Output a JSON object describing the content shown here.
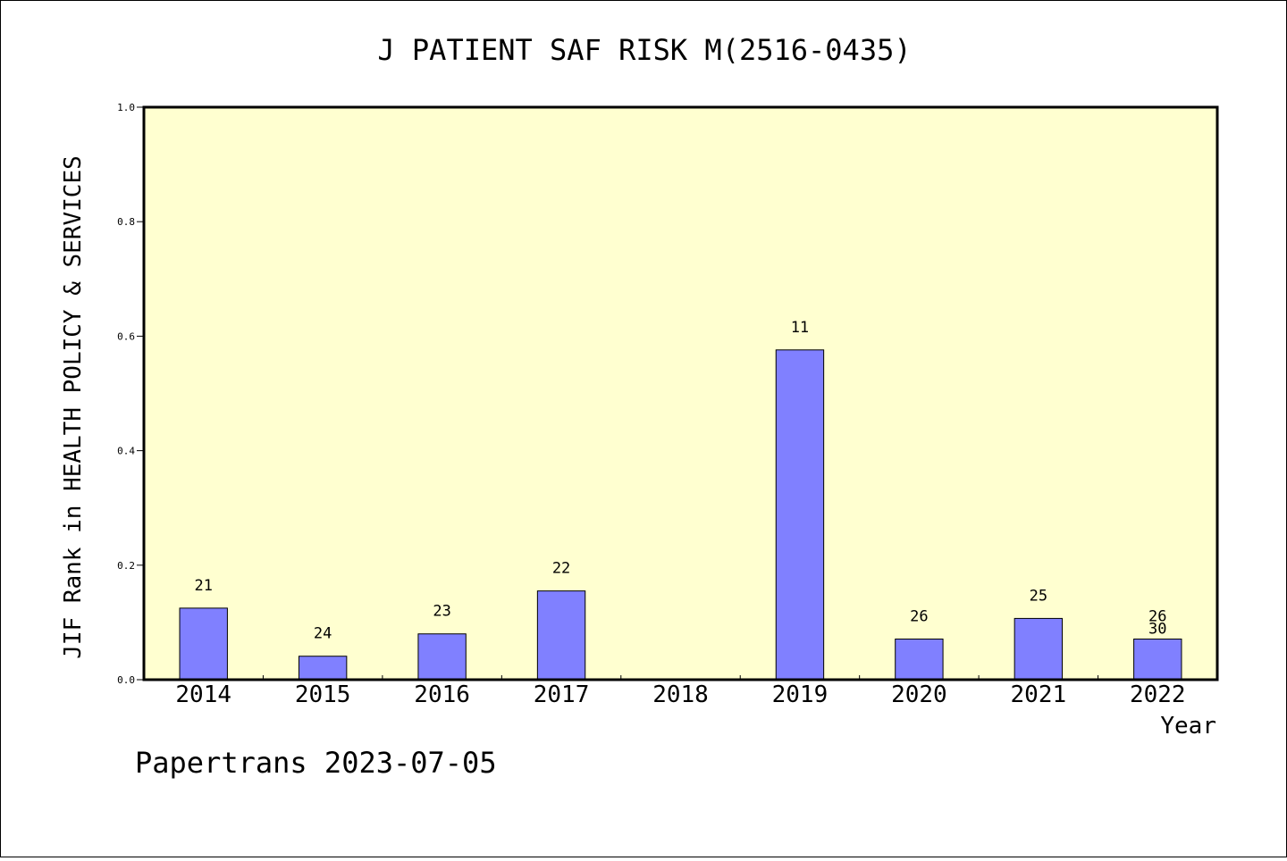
{
  "chart_data": {
    "type": "bar",
    "title": "J PATIENT SAF RISK M(2516-0435)",
    "ylabel": "JIF Rank in HEALTH POLICY & SERVICES",
    "xlabel": "Year",
    "ylim": [
      0,
      1.0
    ],
    "yticks": [
      "0.0",
      "0.2",
      "0.4",
      "0.6",
      "0.8",
      "1.0"
    ],
    "categories": [
      "2014",
      "2015",
      "2016",
      "2017",
      "2018",
      "2019",
      "2020",
      "2021",
      "2022"
    ],
    "values": [
      0.125,
      0.041,
      0.08,
      0.155,
      null,
      0.576,
      0.071,
      0.107,
      0.071
    ],
    "data_labels": [
      "21",
      "24",
      "23",
      "22",
      "",
      "11",
      "26",
      "25",
      "26\n30"
    ],
    "bar_color": "#8080ff",
    "plot_background": "#ffffd0",
    "grid": false,
    "legend": "none"
  },
  "footer": "Papertrans 2023-07-05"
}
